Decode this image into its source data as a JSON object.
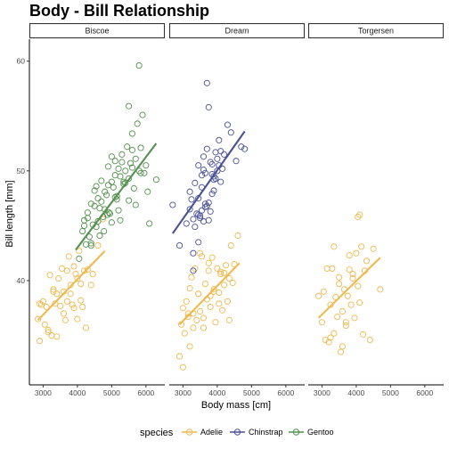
{
  "chart_data": {
    "type": "scatter",
    "title": "Body - Bill Relationship",
    "xlabel": "Body mass [cm]",
    "ylabel": "Bill length [mm]",
    "xlim": [
      2600,
      6550
    ],
    "ylim": [
      30.5,
      62
    ],
    "x_ticks": [
      3000,
      4000,
      5000,
      6000
    ],
    "y_ticks": [
      40,
      50,
      60
    ],
    "facet_var": "island",
    "facets": [
      "Biscoe",
      "Dream",
      "Torgersen"
    ],
    "legend": {
      "title": "species",
      "position": "bottom"
    },
    "series": [
      {
        "name": "Adelie",
        "color": "#F0B94F"
      },
      {
        "name": "Chinstrap",
        "color": "#4A5195"
      },
      {
        "name": "Gentoo",
        "color": "#54904E"
      }
    ],
    "trend_lines": [
      {
        "facet": "Biscoe",
        "series": "Adelie",
        "x": [
          2850,
          4800
        ],
        "y": [
          36.4,
          42.7
        ]
      },
      {
        "facet": "Biscoe",
        "series": "Gentoo",
        "x": [
          3950,
          6300
        ],
        "y": [
          42.8,
          52.5
        ]
      },
      {
        "facet": "Dream",
        "series": "Adelie",
        "x": [
          2900,
          4650
        ],
        "y": [
          36.0,
          41.6
        ]
      },
      {
        "facet": "Dream",
        "series": "Chinstrap",
        "x": [
          2700,
          4800
        ],
        "y": [
          44.3,
          53.6
        ]
      },
      {
        "facet": "Torgersen",
        "series": "Adelie",
        "x": [
          2900,
          4700
        ],
        "y": [
          36.6,
          42.1
        ]
      }
    ],
    "points": [
      {
        "facet": "Biscoe",
        "series": "Adelie",
        "x": [
          2850,
          2900,
          2950,
          3000,
          3050,
          3100,
          3150,
          3200,
          3250,
          3300,
          3350,
          3400,
          3450,
          3500,
          3550,
          3600,
          3650,
          3700,
          3750,
          3800,
          3850,
          3900,
          3950,
          4000,
          4050,
          4100,
          4150,
          4200,
          4250,
          4300,
          4400,
          4450,
          4600,
          4750,
          2900,
          3150,
          3400,
          3700,
          3800,
          3900,
          4000,
          4100,
          3600,
          3300
        ],
        "y": [
          36.5,
          34.5,
          37.8,
          38.1,
          36.0,
          37.6,
          35.5,
          40.5,
          35.0,
          39.2,
          37.9,
          38.8,
          40.2,
          37.7,
          41.1,
          39.0,
          36.4,
          38.1,
          42.2,
          39.6,
          37.8,
          41.3,
          40.6,
          36.5,
          42.7,
          39.7,
          37.6,
          40.9,
          35.7,
          41.0,
          39.6,
          40.6,
          43.2,
          45.6,
          37.9,
          35.3,
          34.9,
          40.9,
          38.8,
          37.5,
          40.2,
          38.2,
          37.0,
          39.0
        ]
      },
      {
        "facet": "Biscoe",
        "series": "Gentoo",
        "x": [
          4050,
          4150,
          4200,
          4250,
          4300,
          4350,
          4400,
          4450,
          4500,
          4550,
          4600,
          4650,
          4700,
          4750,
          4800,
          4850,
          4900,
          4950,
          5000,
          5050,
          5100,
          5150,
          5200,
          5250,
          5300,
          5350,
          5400,
          5450,
          5500,
          5550,
          5600,
          5650,
          5700,
          5750,
          5800,
          5850,
          5900,
          5950,
          6000,
          6050,
          6300,
          4200,
          4300,
          4400,
          4500,
          4600,
          4700,
          4800,
          4900,
          5000,
          5100,
          5200,
          5300,
          5400,
          5500,
          5600,
          5700,
          4400,
          4650,
          4875,
          5100,
          5350,
          5600,
          5850,
          6100,
          4550,
          4775,
          5000,
          5250,
          5500,
          5800,
          4925,
          5150
        ],
        "y": [
          42.0,
          44.5,
          45.5,
          43.3,
          46.2,
          44.0,
          47.0,
          45.1,
          48.2,
          44.9,
          47.5,
          46.6,
          49.1,
          45.8,
          48.1,
          47.8,
          50.4,
          46.1,
          49.0,
          48.5,
          50.9,
          47.7,
          50.2,
          49.5,
          51.5,
          48.8,
          50.0,
          52.2,
          49.3,
          50.7,
          53.4,
          48.4,
          51.1,
          54.3,
          50.0,
          52.1,
          55.1,
          49.8,
          50.5,
          48.1,
          49.2,
          45.0,
          45.7,
          43.4,
          46.8,
          45.4,
          47.2,
          46.5,
          48.7,
          45.3,
          49.6,
          46.4,
          50.8,
          48.9,
          47.3,
          51.9,
          46.9,
          43.2,
          44.1,
          46.0,
          47.6,
          49.0,
          50.3,
          49.8,
          45.2,
          48.6,
          44.5,
          51.3,
          45.5,
          55.9,
          59.6,
          46.2,
          47.4
        ]
      },
      {
        "facet": "Dream",
        "series": "Adelie",
        "x": [
          2900,
          2950,
          3000,
          3050,
          3100,
          3150,
          3200,
          3250,
          3300,
          3350,
          3400,
          3450,
          3500,
          3550,
          3600,
          3650,
          3700,
          3750,
          3800,
          3850,
          3900,
          3950,
          4000,
          4050,
          4100,
          4150,
          4200,
          4250,
          4300,
          4350,
          4400,
          4450,
          4500,
          4600,
          3000,
          3150,
          3300,
          3450,
          3600,
          3750,
          3900,
          4050,
          4200,
          4350,
          3200,
          3500,
          3800,
          4100
        ],
        "y": [
          33.1,
          36.0,
          37.5,
          35.2,
          38.1,
          36.7,
          39.3,
          40.3,
          37.0,
          41.1,
          36.4,
          38.8,
          37.2,
          42.2,
          35.7,
          39.7,
          38.3,
          40.9,
          37.6,
          42.1,
          39.2,
          36.2,
          41.1,
          38.9,
          40.6,
          37.3,
          39.6,
          41.4,
          38.1,
          40.2,
          43.2,
          39.8,
          41.5,
          44.1,
          32.1,
          37.0,
          35.7,
          38.8,
          36.6,
          41.6,
          39.0,
          37.9,
          40.7,
          36.4,
          34.0,
          42.5,
          38.6,
          40.8
        ]
      },
      {
        "facet": "Dream",
        "series": "Chinstrap",
        "x": [
          2700,
          2900,
          3100,
          3200,
          3250,
          3300,
          3350,
          3400,
          3450,
          3500,
          3550,
          3600,
          3650,
          3700,
          3750,
          3800,
          3850,
          3900,
          3950,
          4000,
          4050,
          4100,
          4150,
          4200,
          4300,
          4400,
          4550,
          4700,
          4800,
          3300,
          3450,
          3600,
          3750,
          3900,
          4050,
          3500,
          3650,
          3800,
          3950,
          4100,
          3350,
          3550,
          3700,
          3850,
          4000,
          3450,
          3600,
          3750,
          3900,
          3550,
          3700,
          3300,
          3450,
          3200,
          3650,
          3850
        ],
        "y": [
          46.9,
          43.2,
          45.2,
          46.5,
          47.4,
          45.6,
          48.9,
          46.1,
          50.5,
          45.9,
          49.6,
          51.3,
          46.7,
          52.0,
          45.5,
          50.8,
          47.9,
          49.5,
          51.7,
          50.0,
          52.8,
          49.0,
          50.2,
          51.5,
          54.2,
          53.5,
          50.9,
          52.2,
          52.0,
          42.5,
          46.0,
          50.1,
          47.1,
          48.2,
          50.5,
          45.7,
          49.8,
          46.3,
          49.3,
          51.8,
          44.9,
          48.5,
          46.8,
          50.6,
          51.1,
          47.5,
          45.4,
          55.8,
          49.2,
          46.4,
          58.0,
          40.9,
          43.5,
          48.1,
          47.0,
          49.7
        ]
      },
      {
        "facet": "Torgersen",
        "series": "Adelie",
        "x": [
          2900,
          3000,
          3050,
          3100,
          3150,
          3200,
          3250,
          3300,
          3350,
          3400,
          3450,
          3500,
          3550,
          3600,
          3650,
          3700,
          3750,
          3800,
          3850,
          3900,
          3950,
          4000,
          4050,
          4100,
          4150,
          4200,
          4250,
          4300,
          4400,
          4500,
          4700,
          3250,
          3500,
          3700,
          3900,
          4050,
          3350,
          3600,
          3800,
          4100
        ],
        "y": [
          38.6,
          36.2,
          39.0,
          34.6,
          41.1,
          34.4,
          37.8,
          41.1,
          35.2,
          38.5,
          36.7,
          40.3,
          33.5,
          37.2,
          39.2,
          35.9,
          38.6,
          41.0,
          37.8,
          40.2,
          36.6,
          42.5,
          39.5,
          38.0,
          43.1,
          35.1,
          40.9,
          41.8,
          34.6,
          42.9,
          39.2,
          34.8,
          39.7,
          36.2,
          40.6,
          45.8,
          43.1,
          34.0,
          42.3,
          46.0
        ]
      }
    ]
  }
}
